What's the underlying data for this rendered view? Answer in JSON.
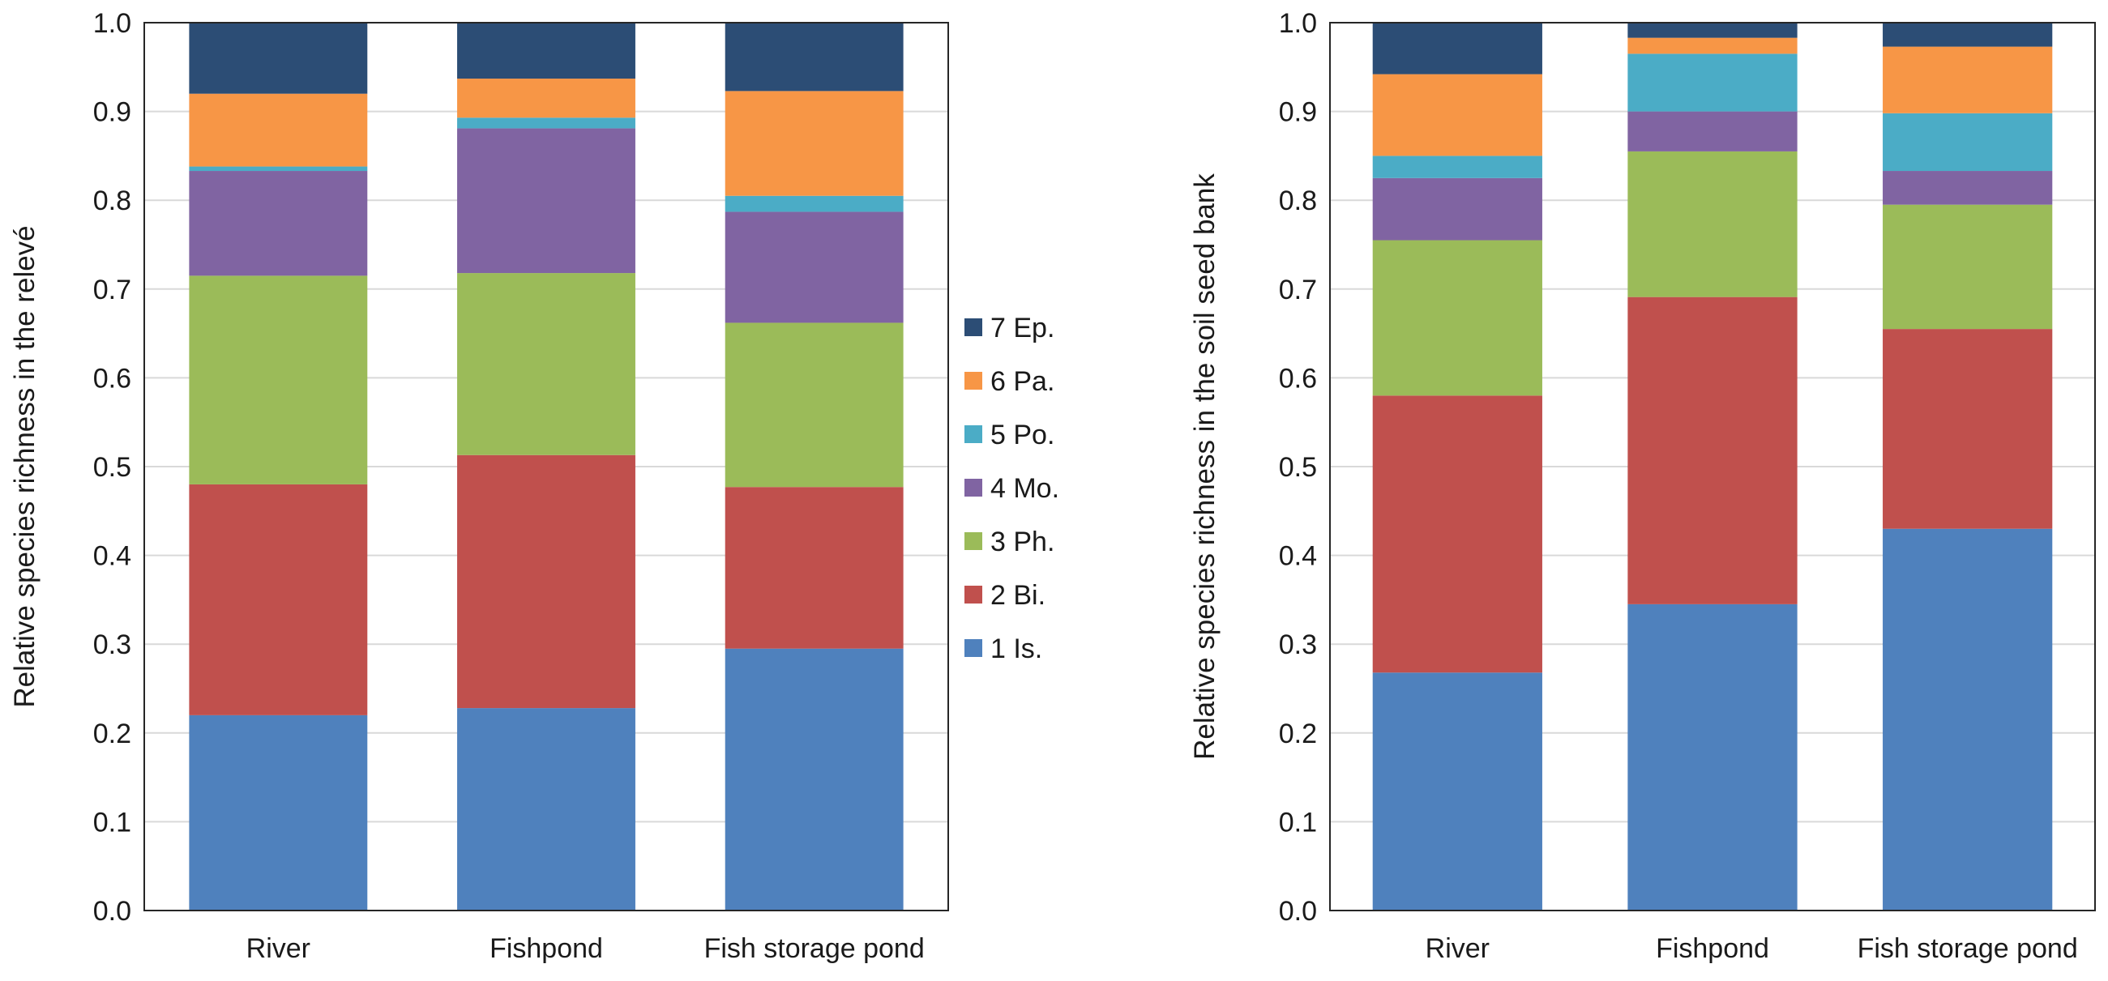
{
  "chart_data": [
    {
      "type": "bar",
      "stacked": true,
      "categories": [
        "River",
        "Fishpond",
        "Fish storage pond"
      ],
      "ylabel": "Relative species richness in the relevé",
      "ylim": [
        0,
        1.0
      ],
      "yticks": [
        "0.0",
        "0.1",
        "0.2",
        "0.3",
        "0.4",
        "0.5",
        "0.6",
        "0.7",
        "0.8",
        "0.9",
        "1.0"
      ],
      "grid": true,
      "series": [
        {
          "name": "1 Is.",
          "color": "#4f81bd",
          "values": [
            0.22,
            0.228,
            0.295
          ]
        },
        {
          "name": "2 Bi.",
          "color": "#c0504d",
          "values": [
            0.26,
            0.285,
            0.182
          ]
        },
        {
          "name": "3 Ph.",
          "color": "#9bbb59",
          "values": [
            0.235,
            0.205,
            0.185
          ]
        },
        {
          "name": "4 Mo.",
          "color": "#8064a2",
          "values": [
            0.118,
            0.163,
            0.125
          ]
        },
        {
          "name": "5 Po.",
          "color": "#4bacc6",
          "values": [
            0.005,
            0.012,
            0.018
          ]
        },
        {
          "name": "6 Pa.",
          "color": "#f79646",
          "values": [
            0.082,
            0.044,
            0.118
          ]
        },
        {
          "name": "7 Ep.",
          "color": "#2c4d75",
          "values": [
            0.08,
            0.063,
            0.077
          ]
        }
      ]
    },
    {
      "type": "bar",
      "stacked": true,
      "categories": [
        "River",
        "Fishpond",
        "Fish storage pond"
      ],
      "ylabel": "Relative species richness in the soil seed bank",
      "ylim": [
        0,
        1.0
      ],
      "yticks": [
        "0.0",
        "0.1",
        "0.2",
        "0.3",
        "0.4",
        "0.5",
        "0.6",
        "0.7",
        "0.8",
        "0.9",
        "1.0"
      ],
      "grid": true,
      "series": [
        {
          "name": "1 Is.",
          "color": "#4f81bd",
          "values": [
            0.268,
            0.345,
            0.43
          ]
        },
        {
          "name": "2 Bi.",
          "color": "#c0504d",
          "values": [
            0.312,
            0.346,
            0.225
          ]
        },
        {
          "name": "3 Ph.",
          "color": "#9bbb59",
          "values": [
            0.175,
            0.164,
            0.14
          ]
        },
        {
          "name": "4 Mo.",
          "color": "#8064a2",
          "values": [
            0.07,
            0.045,
            0.038
          ]
        },
        {
          "name": "5 Po.",
          "color": "#4bacc6",
          "values": [
            0.025,
            0.065,
            0.065
          ]
        },
        {
          "name": "6 Pa.",
          "color": "#f79646",
          "values": [
            0.092,
            0.018,
            0.075
          ]
        },
        {
          "name": "7 Ep.",
          "color": "#2c4d75",
          "values": [
            0.058,
            0.017,
            0.027
          ]
        }
      ]
    }
  ],
  "legend": {
    "placement": "center",
    "items": [
      {
        "label": "7 Ep.",
        "color": "#2c4d75"
      },
      {
        "label": "6 Pa.",
        "color": "#f79646"
      },
      {
        "label": "5 Po.",
        "color": "#4bacc6"
      },
      {
        "label": "4 Mo.",
        "color": "#8064a2"
      },
      {
        "label": "3 Ph.",
        "color": "#9bbb59"
      },
      {
        "label": "2 Bi.",
        "color": "#c0504d"
      },
      {
        "label": "1 Is.",
        "color": "#4f81bd"
      }
    ]
  }
}
